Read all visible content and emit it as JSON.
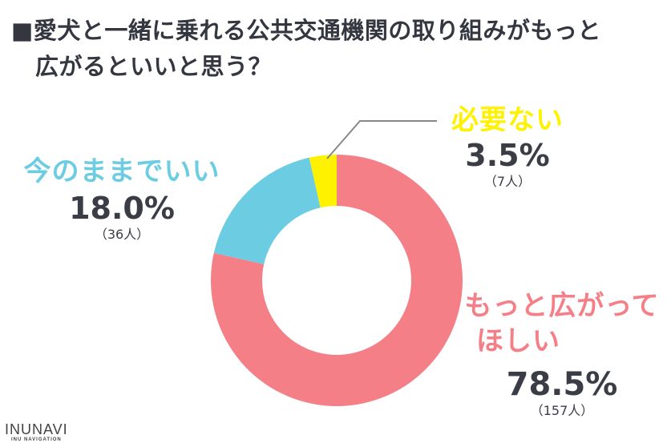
{
  "title": {
    "marker": "■",
    "line1": "愛犬と一緒に乗れる公共交通機関の取り組みがもっと",
    "line2": "広がるといいと思う？"
  },
  "labels": {
    "want_more": {
      "category_line1": "もっと広がって",
      "category_line2": "ほしい",
      "percent": "78.5%",
      "count": "（157人）"
    },
    "as_is": {
      "category": "今のままでいい",
      "percent": "18.0%",
      "count": "（36人）"
    },
    "not_needed": {
      "category": "必要ない",
      "percent": "3.5%",
      "count": "（7人）"
    }
  },
  "colors": {
    "want_more": "#F47F87",
    "as_is": "#6CCDE2",
    "not_needed": "#FFF200",
    "text": "#3A3D45",
    "leader_line": "#888888"
  },
  "logo": {
    "main": "INUNAVI",
    "sub": "INU NAVIGATION"
  },
  "chart_data": {
    "type": "pie",
    "subtype": "donut",
    "title": "愛犬と一緒に乗れる公共交通機関の取り組みがもっと広がるといいと思う？",
    "categories": [
      "もっと広がってほしい",
      "今のままでいい",
      "必要ない"
    ],
    "values": [
      78.5,
      18.0,
      3.5
    ],
    "counts": [
      157,
      36,
      7
    ],
    "unit": "%",
    "start_angle": "12 o'clock, clockwise",
    "colors": [
      "#F47F87",
      "#6CCDE2",
      "#FFF200"
    ],
    "legend": "none (direct labels)"
  }
}
